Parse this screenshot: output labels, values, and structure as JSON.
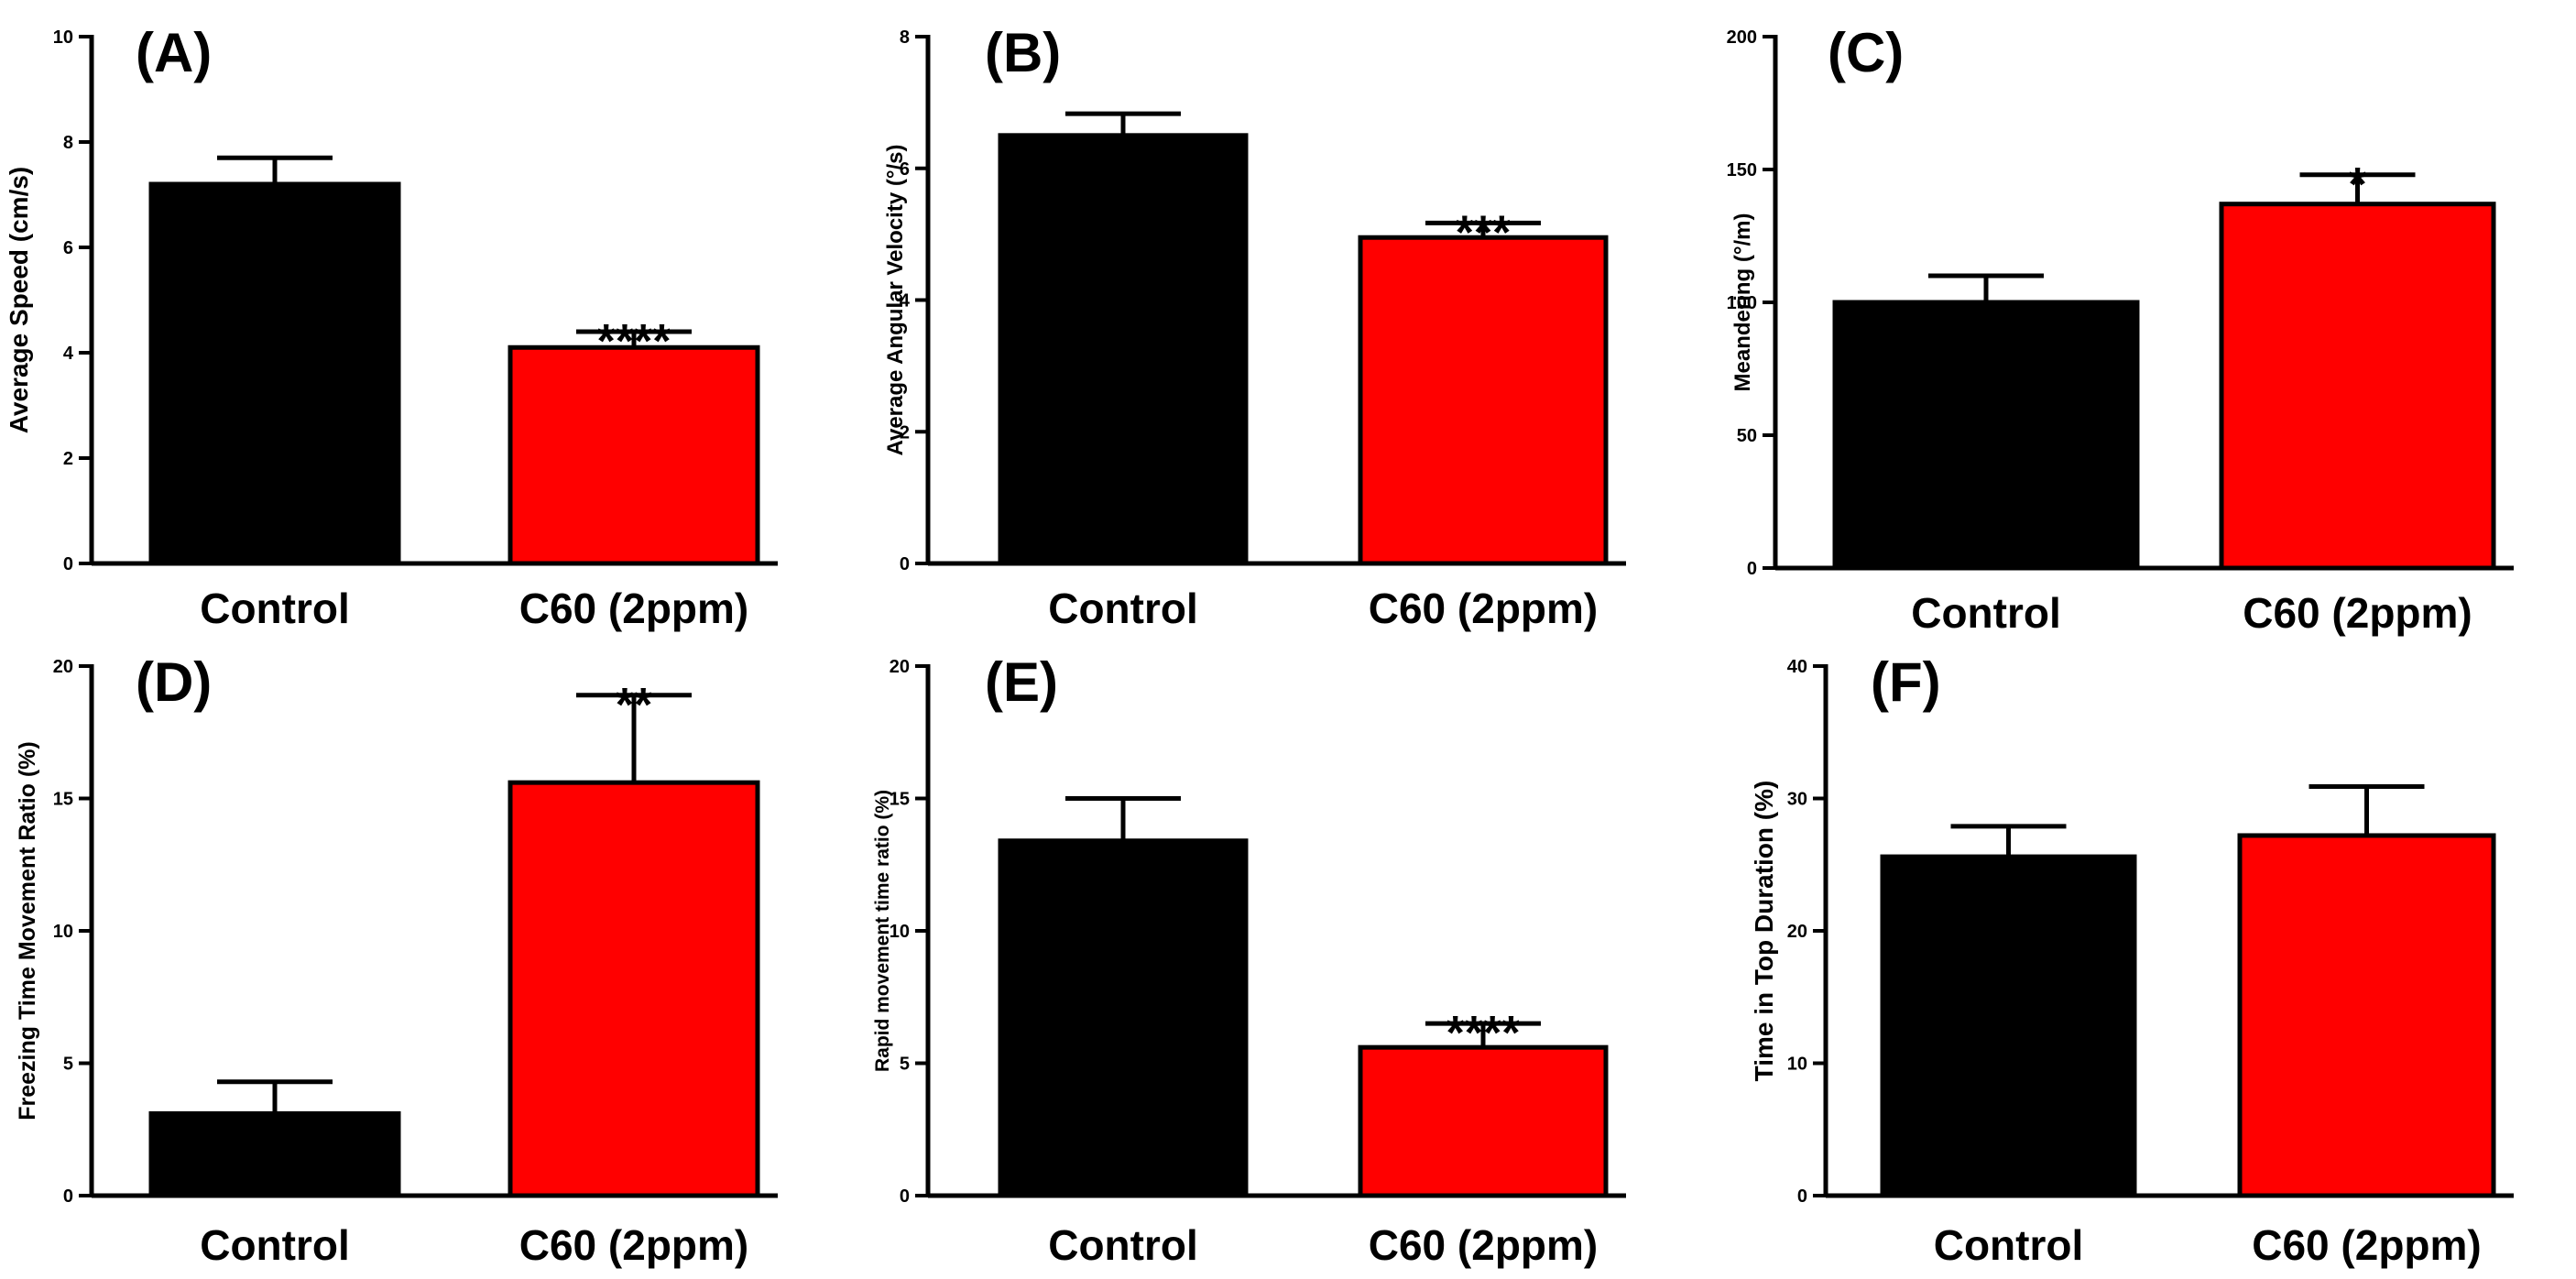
{
  "figure": {
    "colors": {
      "control": "#000000",
      "treatment": "#ff0000",
      "axis": "#000000",
      "background": "#ffffff"
    }
  },
  "chart_data": [
    {
      "panel": "(A)",
      "type": "bar",
      "categories": [
        "Control",
        "C60 (2ppm)"
      ],
      "values": [
        7.2,
        4.1
      ],
      "errors": [
        0.5,
        0.3
      ],
      "significance": [
        "",
        "****"
      ],
      "ylabel": "Average Speed (cm/s)",
      "ylim": [
        0,
        10
      ],
      "yticks": [
        0,
        2,
        4,
        6,
        8,
        10
      ],
      "grid": false,
      "colors": [
        "#000000",
        "#ff0000"
      ]
    },
    {
      "panel": "(B)",
      "type": "bar",
      "categories": [
        "Control",
        "C60 (2ppm)"
      ],
      "values": [
        6.5,
        4.95
      ],
      "errors": [
        0.33,
        0.22
      ],
      "significance": [
        "",
        "***"
      ],
      "ylabel": "Average Angular Velocity (°/s)",
      "ylim": [
        0,
        8
      ],
      "yticks": [
        0,
        2,
        4,
        6,
        8
      ],
      "grid": false,
      "colors": [
        "#000000",
        "#ff0000"
      ]
    },
    {
      "panel": "(C)",
      "type": "bar",
      "categories": [
        "Control",
        "C60 (2ppm)"
      ],
      "values": [
        100,
        137
      ],
      "errors": [
        10,
        11
      ],
      "significance": [
        "",
        "*"
      ],
      "ylabel": "Meandering (°/m)",
      "ylim": [
        0,
        200
      ],
      "yticks": [
        0,
        50,
        100,
        150,
        200
      ],
      "grid": false,
      "colors": [
        "#000000",
        "#ff0000"
      ]
    },
    {
      "panel": "(D)",
      "type": "bar",
      "categories": [
        "Control",
        "C60 (2ppm)"
      ],
      "values": [
        3.1,
        15.6
      ],
      "errors": [
        1.2,
        3.3
      ],
      "significance": [
        "",
        "**"
      ],
      "ylabel": "Freezing Time Movement Ratio (%)",
      "ylim": [
        0,
        20
      ],
      "yticks": [
        0,
        5,
        10,
        15,
        20
      ],
      "grid": false,
      "colors": [
        "#000000",
        "#ff0000"
      ]
    },
    {
      "panel": "(E)",
      "type": "bar",
      "categories": [
        "Control",
        "C60 (2ppm)"
      ],
      "values": [
        13.4,
        5.6
      ],
      "errors": [
        1.6,
        0.9
      ],
      "significance": [
        "",
        "****"
      ],
      "ylabel": "Rapid movement time ratio (%)",
      "ylim": [
        0,
        20
      ],
      "yticks": [
        0,
        5,
        10,
        15,
        20
      ],
      "grid": false,
      "colors": [
        "#000000",
        "#ff0000"
      ]
    },
    {
      "panel": "(F)",
      "type": "bar",
      "categories": [
        "Control",
        "C60 (2ppm)"
      ],
      "values": [
        25.6,
        27.2
      ],
      "errors": [
        2.3,
        3.7
      ],
      "significance": [
        "",
        ""
      ],
      "ylabel": "Time in Top Duration (%)",
      "ylim": [
        0,
        40
      ],
      "yticks": [
        0,
        10,
        20,
        30,
        40
      ],
      "grid": false,
      "colors": [
        "#000000",
        "#ff0000"
      ]
    }
  ]
}
